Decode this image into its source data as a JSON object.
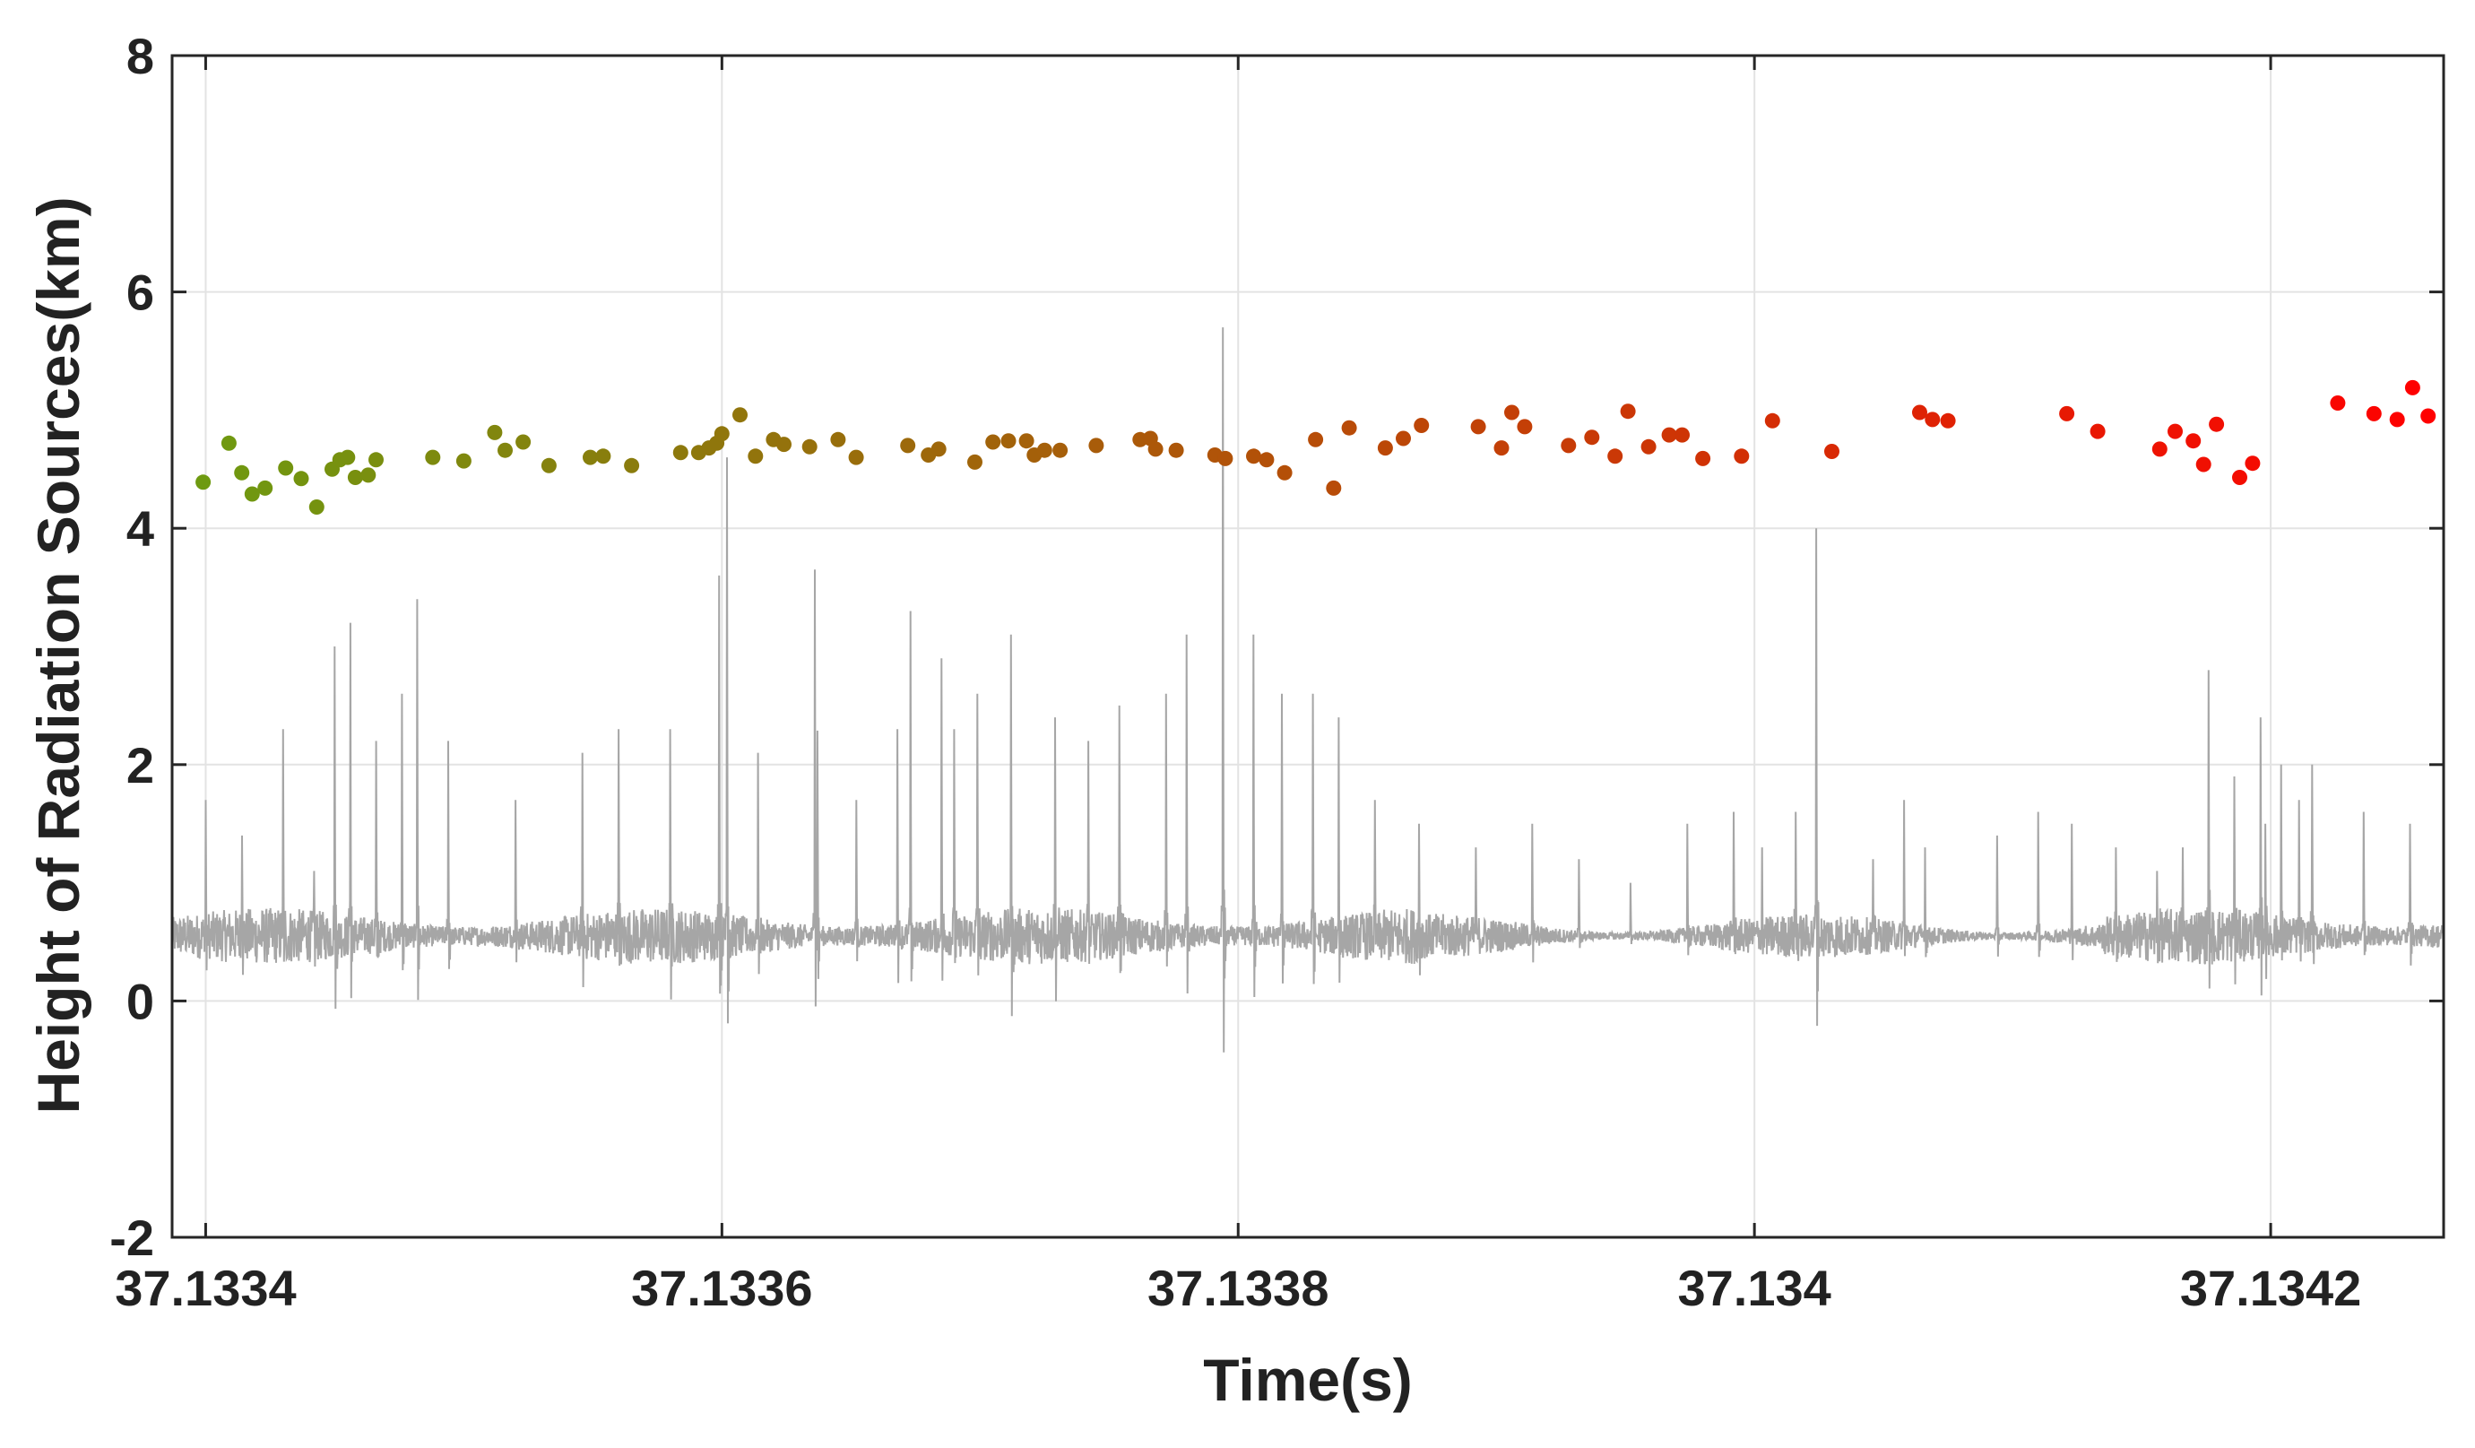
{
  "chart_data": {
    "type": "scatter",
    "xlabel": "Time(s)",
    "ylabel": "Height of Radiation Sources(km)",
    "xlim": [
      37.133387,
      37.134267
    ],
    "ylim": [
      -2,
      8
    ],
    "grid": true,
    "x_ticks": [
      {
        "value": 37.1334,
        "label": "37.1334"
      },
      {
        "value": 37.1336,
        "label": "37.1336"
      },
      {
        "value": 37.1338,
        "label": "37.1338"
      },
      {
        "value": 37.134,
        "label": "37.134"
      },
      {
        "value": 37.1342,
        "label": "37.1342"
      }
    ],
    "y_ticks": [
      {
        "value": -2,
        "label": "-2"
      },
      {
        "value": 0,
        "label": "0"
      },
      {
        "value": 2,
        "label": "2"
      },
      {
        "value": 4,
        "label": "4"
      },
      {
        "value": 6,
        "label": "6"
      },
      {
        "value": 8,
        "label": "8"
      }
    ],
    "color_scale": {
      "start": "#6E9A10",
      "end": "#FF0000"
    },
    "waveform": {
      "color": "#A6A6A6",
      "baseline": 0.55,
      "spikes": [
        [
          37.1334,
          1.7
        ],
        [
          37.133414,
          1.4
        ],
        [
          37.13343,
          2.3
        ],
        [
          37.133442,
          1.1
        ],
        [
          37.13345,
          3.0
        ],
        [
          37.133456,
          3.2
        ],
        [
          37.133466,
          2.2
        ],
        [
          37.133476,
          2.6
        ],
        [
          37.133482,
          3.4
        ],
        [
          37.133494,
          2.2
        ],
        [
          37.13352,
          1.7
        ],
        [
          37.133546,
          2.1
        ],
        [
          37.13356,
          2.3
        ],
        [
          37.13358,
          2.3
        ],
        [
          37.133602,
          4.6
        ],
        [
          37.133614,
          2.1
        ],
        [
          37.133637,
          2.4
        ],
        [
          37.133652,
          1.7
        ],
        [
          37.133668,
          2.3
        ],
        [
          37.13369,
          2.3
        ],
        [
          37.133599,
          3.6
        ],
        [
          37.133636,
          3.65
        ],
        [
          37.133673,
          3.3
        ],
        [
          37.133685,
          2.9
        ],
        [
          37.133699,
          2.6
        ],
        [
          37.133712,
          3.1
        ],
        [
          37.133729,
          2.4
        ],
        [
          37.133742,
          2.2
        ],
        [
          37.133754,
          2.5
        ],
        [
          37.133772,
          2.6
        ],
        [
          37.13378,
          3.1
        ],
        [
          37.133794,
          5.7
        ],
        [
          37.133806,
          3.1
        ],
        [
          37.133817,
          2.6
        ],
        [
          37.133829,
          2.6
        ],
        [
          37.133839,
          2.4
        ],
        [
          37.133853,
          1.7
        ],
        [
          37.13387,
          1.5
        ],
        [
          37.133892,
          1.3
        ],
        [
          37.133914,
          1.5
        ],
        [
          37.133932,
          1.2
        ],
        [
          37.133952,
          1.0
        ],
        [
          37.133974,
          1.5
        ],
        [
          37.133992,
          1.6
        ],
        [
          37.134003,
          1.3
        ],
        [
          37.134016,
          1.6
        ],
        [
          37.134024,
          4.0
        ],
        [
          37.134046,
          1.2
        ],
        [
          37.134066,
          1.3
        ],
        [
          37.134094,
          1.4
        ],
        [
          37.13411,
          1.6
        ],
        [
          37.13414,
          1.3
        ],
        [
          37.134156,
          1.1
        ],
        [
          37.134176,
          2.8
        ],
        [
          37.134198,
          1.5
        ],
        [
          37.134216,
          2.0
        ],
        [
          37.134236,
          1.6
        ],
        [
          37.134254,
          1.5
        ],
        [
          37.134186,
          1.9
        ],
        [
          37.134166,
          1.3
        ],
        [
          37.134204,
          2.0
        ],
        [
          37.134211,
          1.7
        ],
        [
          37.134196,
          2.4
        ],
        [
          37.134123,
          1.5
        ],
        [
          37.134058,
          1.7
        ]
      ]
    },
    "series": [
      {
        "points": [
          [
            37.133399,
            4.39
          ],
          [
            37.133409,
            4.72
          ],
          [
            37.133414,
            4.47
          ],
          [
            37.133418,
            4.29
          ],
          [
            37.133423,
            4.34
          ],
          [
            37.133431,
            4.51
          ],
          [
            37.133437,
            4.42
          ],
          [
            37.133443,
            4.18
          ],
          [
            37.133449,
            4.5
          ],
          [
            37.133452,
            4.58
          ],
          [
            37.133455,
            4.6
          ],
          [
            37.133458,
            4.43
          ],
          [
            37.133463,
            4.45
          ],
          [
            37.133466,
            4.58
          ],
          [
            37.133488,
            4.6
          ],
          [
            37.1335,
            4.57
          ],
          [
            37.133512,
            4.81
          ],
          [
            37.133516,
            4.66
          ],
          [
            37.133523,
            4.73
          ],
          [
            37.133533,
            4.53
          ],
          [
            37.133549,
            4.6
          ],
          [
            37.133554,
            4.61
          ],
          [
            37.133565,
            4.53
          ],
          [
            37.133584,
            4.64
          ],
          [
            37.133591,
            4.64
          ],
          [
            37.133595,
            4.68
          ],
          [
            37.133598,
            4.72
          ],
          [
            37.1336,
            4.8
          ],
          [
            37.133607,
            4.96
          ],
          [
            37.133613,
            4.61
          ],
          [
            37.13362,
            4.75
          ],
          [
            37.133624,
            4.71
          ],
          [
            37.133634,
            4.69
          ],
          [
            37.133645,
            4.75
          ],
          [
            37.133652,
            4.6
          ],
          [
            37.133672,
            4.7
          ],
          [
            37.13368,
            4.62
          ],
          [
            37.133684,
            4.67
          ],
          [
            37.133698,
            4.56
          ],
          [
            37.133705,
            4.73
          ],
          [
            37.133711,
            4.74
          ],
          [
            37.133718,
            4.74
          ],
          [
            37.133721,
            4.62
          ],
          [
            37.133725,
            4.66
          ],
          [
            37.133731,
            4.66
          ],
          [
            37.133745,
            4.7
          ],
          [
            37.133762,
            4.75
          ],
          [
            37.133766,
            4.76
          ],
          [
            37.133768,
            4.67
          ],
          [
            37.133776,
            4.66
          ],
          [
            37.133791,
            4.62
          ],
          [
            37.133795,
            4.59
          ],
          [
            37.133806,
            4.61
          ],
          [
            37.133811,
            4.58
          ],
          [
            37.133818,
            4.47
          ],
          [
            37.13383,
            4.75
          ],
          [
            37.133837,
            4.34
          ],
          [
            37.133843,
            4.85
          ],
          [
            37.133857,
            4.68
          ],
          [
            37.133864,
            4.76
          ],
          [
            37.133871,
            4.87
          ],
          [
            37.133893,
            4.86
          ],
          [
            37.133902,
            4.68
          ],
          [
            37.133906,
            4.98
          ],
          [
            37.133911,
            4.86
          ],
          [
            37.133928,
            4.7
          ],
          [
            37.133937,
            4.77
          ],
          [
            37.133946,
            4.61
          ],
          [
            37.133951,
            4.99
          ],
          [
            37.133959,
            4.69
          ],
          [
            37.133967,
            4.79
          ],
          [
            37.133972,
            4.79
          ],
          [
            37.13398,
            4.59
          ],
          [
            37.133995,
            4.61
          ],
          [
            37.134007,
            4.91
          ],
          [
            37.13403,
            4.65
          ],
          [
            37.134064,
            4.98
          ],
          [
            37.134069,
            4.92
          ],
          [
            37.134075,
            4.91
          ],
          [
            37.134121,
            4.97
          ],
          [
            37.134133,
            4.82
          ],
          [
            37.134157,
            4.67
          ],
          [
            37.134163,
            4.82
          ],
          [
            37.13417,
            4.74
          ],
          [
            37.134174,
            4.54
          ],
          [
            37.134179,
            4.88
          ],
          [
            37.134188,
            4.43
          ],
          [
            37.134193,
            4.55
          ],
          [
            37.134226,
            5.06
          ],
          [
            37.13424,
            4.97
          ],
          [
            37.134249,
            4.92
          ],
          [
            37.134255,
            5.19
          ],
          [
            37.134261,
            4.95
          ]
        ]
      }
    ]
  }
}
